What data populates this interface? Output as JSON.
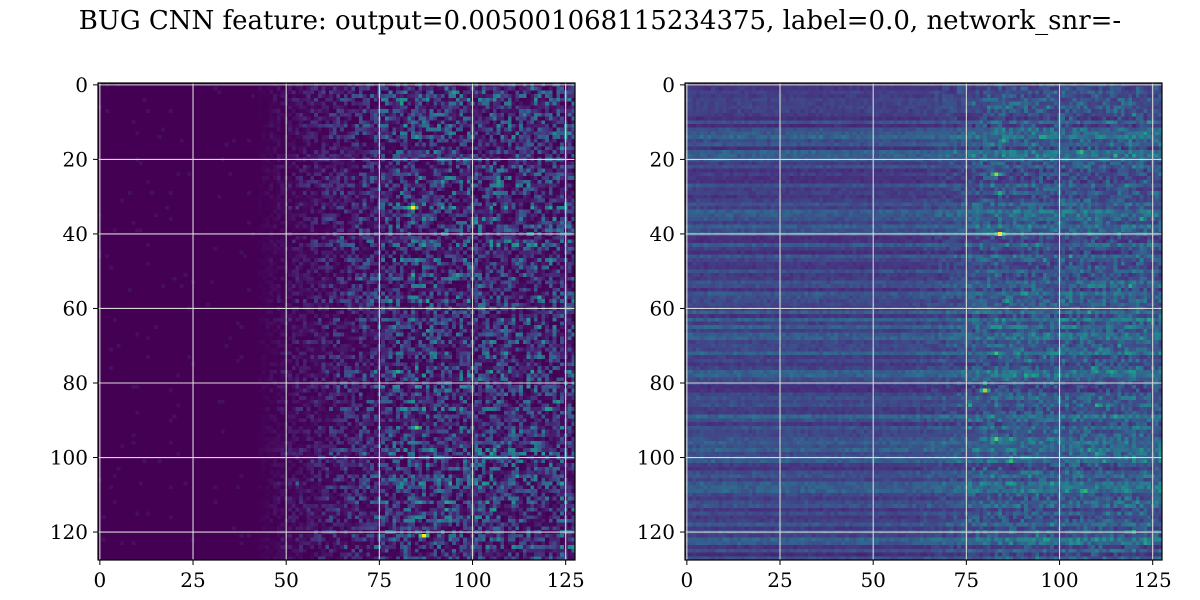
{
  "title": "BUG CNN feature: output=0.005001068115234375, label=0.0, network_snr=-",
  "chart_data": [
    {
      "type": "heatmap",
      "title": "",
      "xlabel": "",
      "ylabel": "",
      "xlim": [
        -0.5,
        127.5
      ],
      "ylim": [
        127.5,
        -0.5
      ],
      "grid": true,
      "colormap": "viridis",
      "xticks": [
        0,
        25,
        50,
        75,
        100,
        125
      ],
      "yticks": [
        0,
        20,
        40,
        60,
        80,
        100,
        120
      ],
      "xtick_labels": [
        "0",
        "25",
        "50",
        "75",
        "100",
        "125"
      ],
      "ytick_labels": [
        "0",
        "20",
        "40",
        "60",
        "80",
        "100",
        "120"
      ],
      "shape": [
        128,
        128
      ],
      "value_range": [
        0,
        1
      ],
      "description_of_pattern": "near-zero for columns 0-45, sparse noisy activations increasing to the right, brightest spots near (x=84,y=33) and (x=87,y=121)",
      "bright_spots": [
        {
          "x": 84,
          "y": 33,
          "value": 1.0
        },
        {
          "x": 87,
          "y": 121,
          "value": 1.0
        },
        {
          "x": 85,
          "y": 92,
          "value": 0.75
        },
        {
          "x": 80,
          "y": 77,
          "value": 0.6
        },
        {
          "x": 96,
          "y": 51,
          "value": 0.55
        },
        {
          "x": 85,
          "y": 14,
          "value": 0.55
        },
        {
          "x": 86,
          "y": 112,
          "value": 0.55
        }
      ]
    },
    {
      "type": "heatmap",
      "title": "",
      "xlabel": "",
      "ylabel": "",
      "xlim": [
        -0.5,
        127.5
      ],
      "ylim": [
        127.5,
        -0.5
      ],
      "grid": true,
      "colormap": "viridis",
      "xticks": [
        0,
        25,
        50,
        75,
        100,
        125
      ],
      "yticks": [
        0,
        20,
        40,
        60,
        80,
        100,
        120
      ],
      "xtick_labels": [
        "0",
        "25",
        "50",
        "75",
        "100",
        "125"
      ],
      "ytick_labels": [
        "0",
        "20",
        "40",
        "60",
        "80",
        "100",
        "120"
      ],
      "shape": [
        128,
        128
      ],
      "value_range": [
        0,
        1
      ],
      "description_of_pattern": "horizontal banded low-mid activations across all columns, denser noisy activations for columns 75-128, brightest spots near (x=84,y=40) and (x=83,y=24)",
      "bright_spots": [
        {
          "x": 84,
          "y": 40,
          "value": 1.0
        },
        {
          "x": 83,
          "y": 24,
          "value": 0.85
        },
        {
          "x": 80,
          "y": 82,
          "value": 0.85
        },
        {
          "x": 83,
          "y": 95,
          "value": 0.75
        },
        {
          "x": 83,
          "y": 72,
          "value": 0.7
        },
        {
          "x": 85,
          "y": 15,
          "value": 0.6
        },
        {
          "x": 84,
          "y": 29,
          "value": 0.6
        }
      ]
    }
  ]
}
